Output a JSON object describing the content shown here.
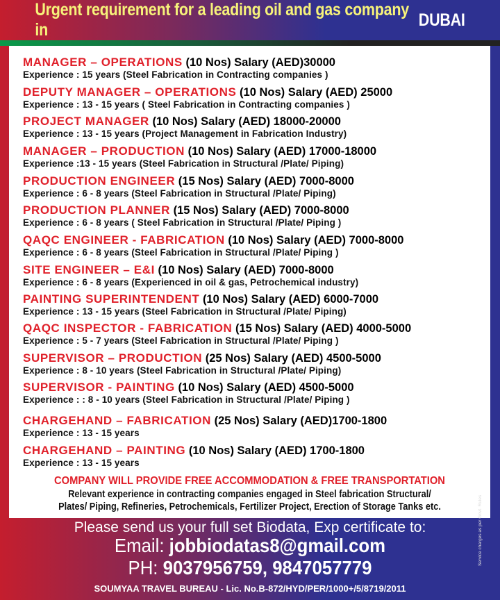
{
  "header": {
    "title": "Urgent requirement for a leading oil and gas company in",
    "city": "DUBAI"
  },
  "jobs": [
    {
      "title": "MANAGER – OPERATIONS",
      "details": "(10 Nos) Salary (AED)30000",
      "experience": "Experience : 15 years (Steel Fabrication in Contracting companies )"
    },
    {
      "title": "DEPUTY MANAGER – OPERATIONS",
      "details": "(10 Nos) Salary (AED) 25000",
      "experience": "Experience : 13 - 15 years ( Steel Fabrication in Contracting companies )"
    },
    {
      "title": "PROJECT MANAGER",
      "details": "(10 Nos) Salary (AED) 18000-20000",
      "experience": "Experience : 13 - 15 years (Project Management in Fabrication Industry)"
    },
    {
      "title": "MANAGER – PRODUCTION",
      "details": "(10 Nos) Salary (AED) 17000-18000",
      "experience": "Experience :13 - 15 years (Steel Fabrication in Structural /Plate/ Piping)"
    },
    {
      "title": "PRODUCTION ENGINEER",
      "details": "(15 Nos) Salary (AED) 7000-8000",
      "experience": "Experience : 6 - 8 years (Steel Fabrication in Structural /Plate/ Piping)"
    },
    {
      "title": "PRODUCTION PLANNER",
      "details": "(15 Nos) Salary (AED) 7000-8000",
      "experience": "Experience : 6 - 8 years ( Steel Fabrication in Structural /Plate/ Piping )"
    },
    {
      "title": "QAQC ENGINEER - FABRICATION",
      "details": "(10 Nos) Salary (AED) 7000-8000",
      "experience": "Experience :  6 - 8 years (Steel Fabrication in Structural /Plate/ Piping )"
    },
    {
      "title": "SITE ENGINEER – E&I",
      "details": "(10 Nos) Salary (AED) 7000-8000",
      "experience": "Experience :  6 - 8 years (Experienced in oil & gas, Petrochemical industry)"
    },
    {
      "title": "PAINTING SUPERINTENDENT",
      "details": "(10 Nos) Salary (AED) 6000-7000",
      "experience": "Experience : 13 - 15 years (Steel Fabrication in Structural /Plate/ Piping)"
    },
    {
      "title": "QAQC INSPECTOR - FABRICATION",
      "details": "(15 Nos) Salary (AED) 4000-5000",
      "experience": "Experience : 5 - 7 years (Steel Fabrication in Structural /Plate/ Piping )"
    },
    {
      "title": "SUPERVISOR – PRODUCTION",
      "details": "(25 Nos) Salary (AED) 4500-5000",
      "experience": "Experience : 8 - 10 years (Steel Fabrication in Structural /Plate/ Piping)"
    },
    {
      "title": "SUPERVISOR - PAINTING",
      "details": "(10 Nos) Salary (AED) 4500-5000",
      "experience": "Experience : : 8 - 10 years (Steel Fabrication in Structural /Plate/ Piping )"
    },
    {
      "title": "CHARGEHAND – FABRICATION",
      "details": "(25 Nos) Salary (AED)1700-1800",
      "experience": "Experience : 13 - 15 years"
    },
    {
      "title": "CHARGEHAND –  PAINTING",
      "details": "(10 Nos) Salary (AED) 1700-1800",
      "experience": "Experience : 13 - 15 years"
    }
  ],
  "company_note": "COMPANY WILL PROVIDE FREE ACCOMMODATION & FREE TRANSPORTATION",
  "relevant": [
    "Relevant experience in contracting companies engaged in Steel fabrication Structural/",
    "Plates/ Piping, Refineries, Petrochemicals, Fertilizer Project, Erection of Storage Tanks etc."
  ],
  "contact": {
    "send": "Please send us your full set Biodata, Exp certificate to:",
    "email_label": "Email:",
    "email": "jobbiodatas8@gmail.com",
    "phone_label": "PH:",
    "phone": "9037956759, 9847057779"
  },
  "license": "SOUMYAA TRAVEL BUREAU - Lic. No.B-872/HYD/PER/1000+/5/8719/2011",
  "side_note": "Service charges as per Govt. Rules"
}
